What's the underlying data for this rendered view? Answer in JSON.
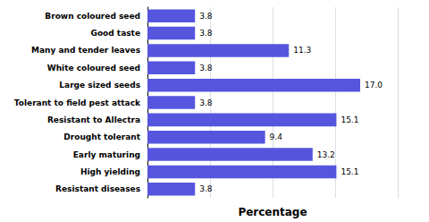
{
  "chart_data": {
    "type": "bar",
    "orientation": "horizontal",
    "xlabel": "Percentage",
    "categories": [
      "Resistant diseases",
      "High yielding",
      "Early maturing",
      "Drought tolerant",
      "Resistant to Allectra",
      "Tolerant to field pest attack",
      "Large sized seeds",
      "White coloured seed",
      "Many and tender leaves",
      "Good taste",
      "Brown coloured seed"
    ],
    "values": [
      3.8,
      15.1,
      13.2,
      9.4,
      15.1,
      3.8,
      17.0,
      3.8,
      11.3,
      3.8,
      3.8
    ],
    "value_labels": [
      "3.8",
      "15.1",
      "13.2",
      "9.4",
      "15.1",
      "3.8",
      "17.0",
      "3.8",
      "11.3",
      "3.8",
      "3.8"
    ],
    "color": "#5555dd",
    "xlim": [
      0,
      20
    ],
    "xticks": [
      0,
      5,
      10,
      15,
      20
    ],
    "grid": true,
    "data_labels": true,
    "tick_labels": "y"
  }
}
